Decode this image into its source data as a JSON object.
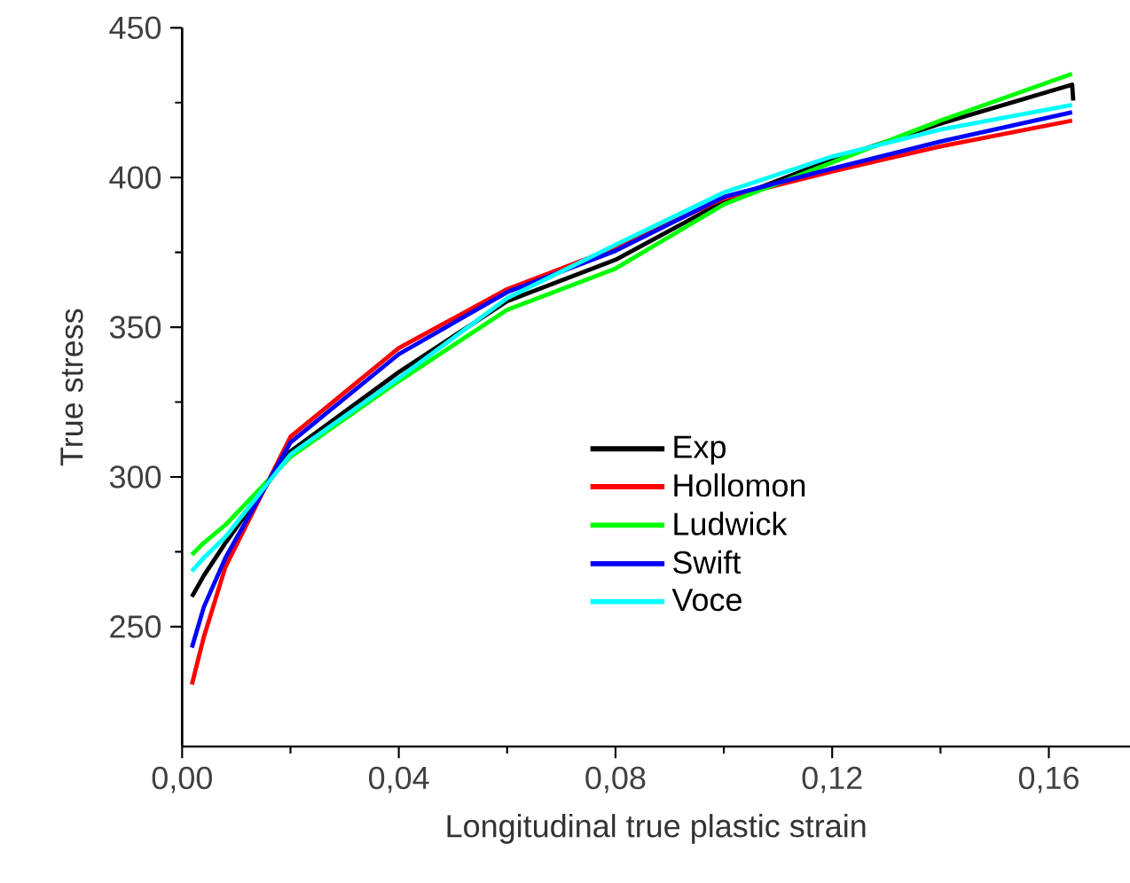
{
  "chart_data": {
    "type": "line",
    "xlabel": "Longitudinal true plastic strain",
    "ylabel": "True stress",
    "xlim": [
      0,
      0.175
    ],
    "ylim": [
      210,
      450
    ],
    "xticks": [
      {
        "value": 0,
        "label": "0,00"
      },
      {
        "value": 0.04,
        "label": "0,04"
      },
      {
        "value": 0.08,
        "label": "0,08"
      },
      {
        "value": 0.12,
        "label": "0,12"
      },
      {
        "value": 0.16,
        "label": "0,16"
      }
    ],
    "yticks": [
      250,
      300,
      350,
      400,
      450
    ],
    "legend": "center",
    "grid": false,
    "series": [
      {
        "name": "Exp",
        "color": "#000000",
        "x": [
          0.0018,
          0.004,
          0.008,
          0.02,
          0.04,
          0.06,
          0.08,
          0.1,
          0.12,
          0.14,
          0.1643,
          0.1645
        ],
        "values": [
          260,
          267,
          278,
          308.5,
          335,
          358.7,
          372.5,
          392,
          406,
          418,
          431,
          425.7
        ]
      },
      {
        "name": "Hollomon",
        "color": "#ff0000",
        "x": [
          0.0018,
          0.004,
          0.008,
          0.02,
          0.04,
          0.06,
          0.08,
          0.1,
          0.12,
          0.14,
          0.1643
        ],
        "values": [
          230.7,
          246.5,
          270,
          313.4,
          343,
          362.7,
          376.5,
          393,
          402,
          410.4,
          419
        ]
      },
      {
        "name": "Ludwick",
        "color": "#00ff00",
        "x": [
          0.0018,
          0.004,
          0.008,
          0.02,
          0.04,
          0.06,
          0.08,
          0.1,
          0.12,
          0.14,
          0.1643
        ],
        "values": [
          274,
          278,
          284,
          306.7,
          332,
          355.8,
          369.6,
          391,
          405,
          419,
          434.6
        ]
      },
      {
        "name": "Swift",
        "color": "#0000ff",
        "x": [
          0.0018,
          0.004,
          0.008,
          0.02,
          0.04,
          0.06,
          0.08,
          0.1,
          0.12,
          0.14,
          0.1643
        ],
        "values": [
          243,
          256.5,
          273,
          311.5,
          341,
          361.7,
          375.5,
          393.5,
          403,
          412,
          421.8
        ]
      },
      {
        "name": "Voce",
        "color": "#00ffff",
        "x": [
          0.0018,
          0.004,
          0.008,
          0.02,
          0.04,
          0.06,
          0.08,
          0.1,
          0.12,
          0.14,
          0.1643
        ],
        "values": [
          268.5,
          273,
          280,
          307.5,
          333,
          359.7,
          377.5,
          395,
          407,
          416,
          424.2
        ]
      }
    ]
  }
}
